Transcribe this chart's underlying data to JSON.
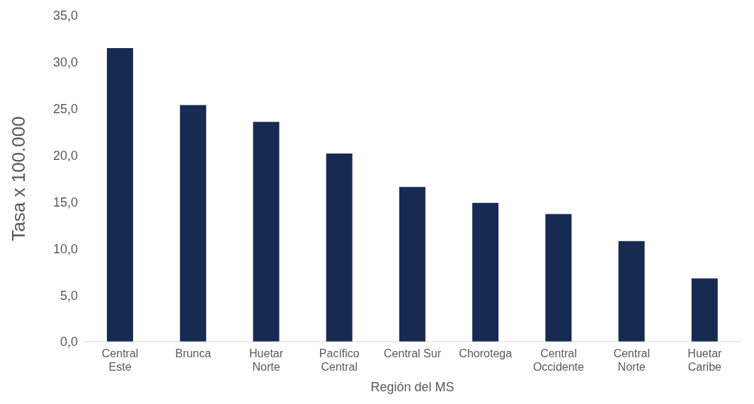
{
  "chart_data": {
    "type": "bar",
    "xlabel": "Región del MS",
    "ylabel": "Tasa x 100.000",
    "categories": [
      "Central\nEste",
      "Brunca",
      "Huetar\nNorte",
      "Pacífico\nCentral",
      "Central Sur",
      "Chorotega",
      "Central\nOccidente",
      "Central\nNorte",
      "Huetar\nCaribe"
    ],
    "values": [
      31.5,
      25.4,
      23.6,
      20.2,
      16.6,
      14.9,
      13.7,
      10.8,
      6.8
    ],
    "color": "#172a52",
    "ylim": [
      0,
      35
    ],
    "yticks": [
      {
        "value": 0,
        "label": "0,0"
      },
      {
        "value": 5,
        "label": "5,0"
      },
      {
        "value": 10,
        "label": "10,0"
      },
      {
        "value": 15,
        "label": "15,0"
      },
      {
        "value": 20,
        "label": "20,0"
      },
      {
        "value": 25,
        "label": "25,0"
      },
      {
        "value": 30,
        "label": "30,0"
      },
      {
        "value": 35,
        "label": "35,0"
      }
    ],
    "grid": false
  }
}
